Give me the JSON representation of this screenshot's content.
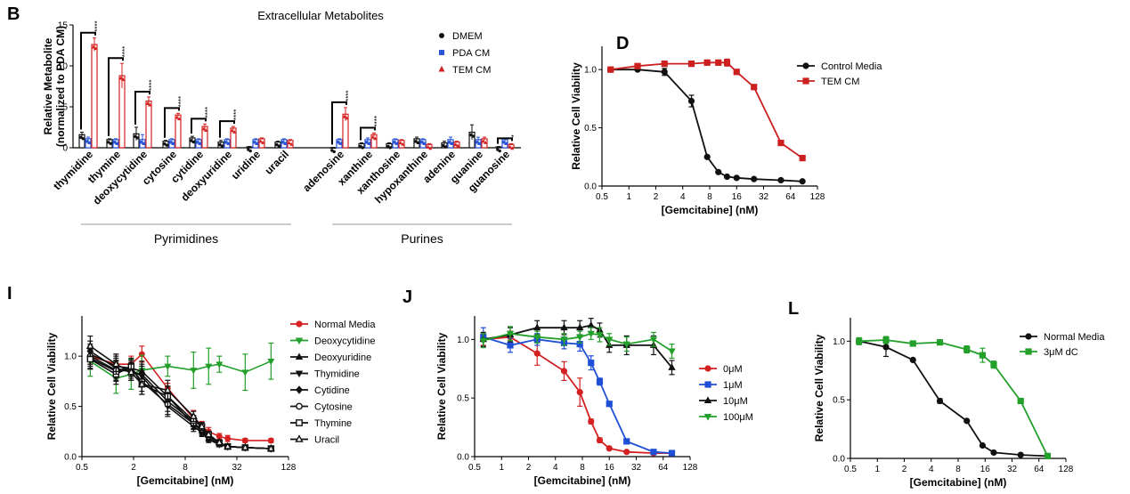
{
  "chart_data": [
    {
      "id": "B",
      "panel_label": "B",
      "type": "bar",
      "title": "Extracellular Metabolites",
      "ylabel": "Relative Metabolite\n(normalized to PDA CM)",
      "ylim": [
        0,
        15
      ],
      "yticks": [
        0,
        5,
        10,
        15
      ],
      "legend_position": "top-right",
      "categories": [
        "thymidine",
        "thymine",
        "deoxycytidine",
        "cytosine",
        "cytidine",
        "deoxyuridine",
        "uridine",
        "uracil",
        "adenosine",
        "xanthine",
        "xanthosine",
        "hypoxanthine",
        "adenine",
        "guanine",
        "guanosine"
      ],
      "groups": [
        {
          "name": "Pyrimidines",
          "first": 0,
          "last": 7
        },
        {
          "name": "Purines",
          "first": 8,
          "last": 14
        }
      ],
      "series": [
        {
          "name": "DMEM",
          "marker": "circle",
          "color": "#111111",
          "values": [
            1.6,
            1.0,
            1.7,
            0.8,
            1.2,
            0.7,
            0.1,
            0.7,
            0.0,
            0.5,
            0.5,
            1.1,
            0.6,
            1.9,
            0.1
          ]
        },
        {
          "name": "PDA CM",
          "marker": "square",
          "color": "#2b55d6",
          "values": [
            1.1,
            1.0,
            1.0,
            1.0,
            1.0,
            1.0,
            1.0,
            1.0,
            1.0,
            1.0,
            1.0,
            1.0,
            1.0,
            1.0,
            1.0
          ]
        },
        {
          "name": "TEM CM",
          "marker": "triangle",
          "color": "#d42020",
          "values": [
            12.6,
            8.8,
            5.7,
            4.0,
            2.6,
            2.4,
            1.1,
            0.9,
            4.1,
            1.6,
            0.9,
            0.4,
            0.7,
            1.1,
            0.4
          ]
        }
      ],
      "errors": [
        [
          0.3,
          0.1,
          0.8,
          0.1,
          0.2,
          0.2,
          0.05,
          0.1,
          0.05,
          0.1,
          0.1,
          0.2,
          0.2,
          0.9,
          0.05
        ],
        [
          0.2,
          0.1,
          0.6,
          0.1,
          0.1,
          0.1,
          0.1,
          0.1,
          0.1,
          0.2,
          0.1,
          0.1,
          0.3,
          0.3,
          0.2
        ],
        [
          0.8,
          1.5,
          0.5,
          0.2,
          0.3,
          0.2,
          0.1,
          0.1,
          0.8,
          0.2,
          0.1,
          0.1,
          0.1,
          0.2,
          0.1
        ]
      ],
      "annotations": [
        {
          "category": "thymidine",
          "text": "****"
        },
        {
          "category": "thymine",
          "text": "****"
        },
        {
          "category": "deoxycytidine",
          "text": "****"
        },
        {
          "category": "cytosine",
          "text": "****"
        },
        {
          "category": "cytidine",
          "text": "****"
        },
        {
          "category": "deoxyuridine",
          "text": "****"
        },
        {
          "category": "adenosine",
          "text": "****"
        },
        {
          "category": "xanthine",
          "text": "****"
        },
        {
          "category": "guanosine",
          "text": "*"
        }
      ]
    },
    {
      "id": "D",
      "panel_label": "D",
      "type": "line",
      "xlabel": "[Gemcitabine] (nM)",
      "ylabel": "Relative Cell Viability",
      "xscale": "log2",
      "xlim": [
        0.5,
        128
      ],
      "xticks": [
        0.5,
        1,
        2,
        4,
        8,
        16,
        32,
        64,
        128
      ],
      "xticklabels": [
        "0.5",
        "1",
        "2",
        "4",
        "8",
        "16",
        "32",
        "64",
        "128"
      ],
      "ylim": [
        0,
        1.2
      ],
      "yticks": [
        0,
        0.5,
        1.0
      ],
      "yticklabels": [
        "0.0",
        "0.5",
        "1.0"
      ],
      "legend_position": "top-right",
      "series": [
        {
          "name": "Control Media",
          "color": "#111111",
          "marker": "circle",
          "x": [
            0.625,
            1.25,
            2.5,
            5,
            7.5,
            10,
            12.5,
            16,
            25,
            50,
            87
          ],
          "y": [
            1.0,
            1.0,
            0.98,
            0.73,
            0.25,
            0.12,
            0.08,
            0.07,
            0.06,
            0.05,
            0.04
          ],
          "err": [
            0.01,
            0.01,
            0.03,
            0.05,
            0.01,
            0.01,
            0.01,
            0.01,
            0.01,
            0.01,
            0.01
          ]
        },
        {
          "name": "TEM CM",
          "color": "#cc1f1f",
          "marker": "square",
          "x": [
            0.625,
            1.25,
            2.5,
            5,
            7.5,
            10,
            12.5,
            16,
            25,
            50,
            87
          ],
          "y": [
            1.0,
            1.03,
            1.05,
            1.05,
            1.06,
            1.06,
            1.06,
            0.98,
            0.85,
            0.37,
            0.24
          ],
          "err": [
            0.01,
            0.01,
            0.01,
            0.01,
            0.01,
            0.02,
            0.03,
            0.02,
            0.02,
            0.01,
            0.01
          ]
        }
      ]
    },
    {
      "id": "I",
      "panel_label": "I",
      "type": "line",
      "xlabel": "[Gemcitabine]  (nM)",
      "ylabel": "Relative Cell Viability",
      "xscale": "log2",
      "xlim": [
        0.5,
        128
      ],
      "xticks": [
        0.5,
        2,
        8,
        32,
        128
      ],
      "xticklabels": [
        "0.5",
        "2",
        "8",
        "32",
        "128"
      ],
      "ylim": [
        0,
        1.4
      ],
      "yticks": [
        0,
        0.5,
        1.0
      ],
      "yticklabels": [
        "0.0",
        "0.5",
        "1.0"
      ],
      "legend_position": "top-right",
      "series": [
        {
          "name": "Normal Media",
          "color": "#d42020",
          "marker": "circle",
          "x": [
            0.625,
            1.25,
            1.875,
            2.5,
            5,
            10,
            12.5,
            15,
            20,
            25,
            40,
            80
          ],
          "y": [
            1.0,
            0.92,
            0.92,
            1.02,
            0.68,
            0.38,
            0.3,
            0.25,
            0.2,
            0.18,
            0.16,
            0.16
          ],
          "err": [
            0.08,
            0.1,
            0.08,
            0.08,
            0.05,
            0.08,
            0.05,
            0.04,
            0.03,
            0.03,
            0.02,
            0.02
          ]
        },
        {
          "name": "Deoxycytidine",
          "color": "#22a02a",
          "marker": "triangle-down",
          "x": [
            0.625,
            1.25,
            1.875,
            2.5,
            5,
            10,
            15,
            20,
            40,
            80
          ],
          "y": [
            0.95,
            0.78,
            0.82,
            0.86,
            0.9,
            0.86,
            0.9,
            0.92,
            0.84,
            0.95
          ],
          "err": [
            0.15,
            0.15,
            0.15,
            0.15,
            0.1,
            0.18,
            0.18,
            0.08,
            0.18,
            0.18
          ]
        },
        {
          "name": "Deoxyuridine",
          "color": "#111111",
          "marker": "triangle",
          "x": [
            0.625,
            1.25,
            1.875,
            2.5,
            5,
            10,
            12.5,
            15,
            20,
            25,
            40,
            80
          ],
          "y": [
            1.02,
            0.9,
            0.88,
            0.85,
            0.6,
            0.32,
            0.26,
            0.18,
            0.12,
            0.1,
            0.09,
            0.08
          ],
          "err": [
            0.1,
            0.1,
            0.08,
            0.1,
            0.1,
            0.05,
            0.04,
            0.03,
            0.02,
            0.02,
            0.02,
            0.02
          ]
        },
        {
          "name": "Thymidine",
          "color": "#111111",
          "marker": "triangle-down",
          "x": [
            0.625,
            1.25,
            1.875,
            2.5,
            5,
            10,
            12.5,
            15,
            20,
            25,
            40,
            80
          ],
          "y": [
            0.98,
            0.85,
            0.86,
            0.8,
            0.5,
            0.3,
            0.24,
            0.17,
            0.12,
            0.1,
            0.09,
            0.08
          ],
          "err": [
            0.1,
            0.1,
            0.08,
            0.1,
            0.1,
            0.05,
            0.04,
            0.03,
            0.02,
            0.02,
            0.02,
            0.02
          ]
        },
        {
          "name": "Cytidine",
          "color": "#111111",
          "marker": "diamond",
          "x": [
            0.625,
            1.25,
            1.875,
            2.5,
            5,
            10,
            12.5,
            15,
            20,
            25,
            40,
            80
          ],
          "y": [
            1.05,
            0.88,
            0.84,
            0.82,
            0.55,
            0.35,
            0.25,
            0.2,
            0.14,
            0.1,
            0.09,
            0.08
          ],
          "err": [
            0.1,
            0.1,
            0.08,
            0.1,
            0.1,
            0.05,
            0.04,
            0.03,
            0.02,
            0.02,
            0.02,
            0.02
          ]
        },
        {
          "name": "Cytosine",
          "color": "#111111",
          "marker": "circle-open",
          "x": [
            0.625,
            1.25,
            1.875,
            2.5,
            5,
            10,
            12.5,
            15,
            20,
            25,
            40,
            80
          ],
          "y": [
            1.0,
            0.86,
            0.88,
            0.75,
            0.52,
            0.33,
            0.27,
            0.2,
            0.13,
            0.1,
            0.09,
            0.08
          ],
          "err": [
            0.1,
            0.1,
            0.08,
            0.1,
            0.1,
            0.05,
            0.04,
            0.03,
            0.02,
            0.02,
            0.02,
            0.02
          ]
        },
        {
          "name": "Thymine",
          "color": "#111111",
          "marker": "square-open",
          "x": [
            0.625,
            1.25,
            1.875,
            2.5,
            5,
            10,
            12.5,
            15,
            20,
            25,
            40,
            80
          ],
          "y": [
            0.97,
            0.82,
            0.9,
            0.72,
            0.6,
            0.36,
            0.3,
            0.22,
            0.14,
            0.1,
            0.09,
            0.08
          ],
          "err": [
            0.1,
            0.1,
            0.08,
            0.1,
            0.1,
            0.05,
            0.04,
            0.03,
            0.02,
            0.02,
            0.02,
            0.02
          ]
        },
        {
          "name": "Uracil",
          "color": "#111111",
          "marker": "triangle-open",
          "x": [
            0.625,
            1.25,
            1.875,
            2.5,
            5,
            10,
            12.5,
            15,
            20,
            25,
            40,
            80
          ],
          "y": [
            1.1,
            0.92,
            0.84,
            0.72,
            0.66,
            0.4,
            0.3,
            0.22,
            0.14,
            0.1,
            0.09,
            0.08
          ],
          "err": [
            0.1,
            0.1,
            0.08,
            0.1,
            0.1,
            0.05,
            0.04,
            0.03,
            0.02,
            0.02,
            0.02,
            0.02
          ]
        }
      ]
    },
    {
      "id": "J",
      "panel_label": "J",
      "type": "line",
      "xlabel": "[Gemcitabine] (nM)",
      "ylabel": "Relative Cell Viability",
      "xscale": "log2",
      "xlim": [
        0.5,
        128
      ],
      "xticks": [
        0.5,
        1,
        2,
        4,
        8,
        16,
        32,
        64,
        128
      ],
      "xticklabels": [
        "0.5",
        "1",
        "2",
        "4",
        "8",
        "16",
        "32",
        "64",
        "128"
      ],
      "ylim": [
        0,
        1.2
      ],
      "yticks": [
        0,
        0.5,
        1.0
      ],
      "yticklabels": [
        "0.0",
        "0.5",
        "1.0"
      ],
      "legend_position": "right",
      "series": [
        {
          "name": "0μM",
          "color": "#d42020",
          "marker": "circle",
          "x": [
            0.625,
            1.25,
            2.5,
            5,
            7.5,
            10,
            12.5,
            16,
            25,
            50,
            80
          ],
          "y": [
            1.0,
            1.02,
            0.88,
            0.73,
            0.55,
            0.3,
            0.14,
            0.07,
            0.04,
            0.03,
            0.03
          ],
          "err": [
            0.05,
            0.05,
            0.1,
            0.08,
            0.12,
            0.02,
            0.02,
            0.01,
            0.01,
            0.01,
            0.01
          ]
        },
        {
          "name": "1μM",
          "color": "#1f4fd6",
          "marker": "square",
          "x": [
            0.625,
            1.25,
            2.5,
            5,
            7.5,
            10,
            12.5,
            16,
            25,
            50,
            80
          ],
          "y": [
            1.02,
            0.95,
            1.0,
            0.97,
            0.96,
            0.8,
            0.64,
            0.45,
            0.13,
            0.04,
            0.03
          ],
          "err": [
            0.08,
            0.06,
            0.05,
            0.05,
            0.06,
            0.06,
            0.03,
            0.02,
            0.01,
            0.01,
            0.01
          ]
        },
        {
          "name": "10μM",
          "color": "#111111",
          "marker": "triangle",
          "x": [
            0.625,
            1.25,
            2.5,
            5,
            7.5,
            10,
            12.5,
            16,
            25,
            50,
            80
          ],
          "y": [
            1.0,
            1.04,
            1.1,
            1.1,
            1.1,
            1.12,
            1.08,
            0.95,
            0.95,
            0.95,
            0.76
          ],
          "err": [
            0.06,
            0.06,
            0.06,
            0.06,
            0.06,
            0.06,
            0.06,
            0.06,
            0.08,
            0.08,
            0.06
          ]
        },
        {
          "name": "100μM",
          "color": "#22a02a",
          "marker": "triangle-down",
          "x": [
            0.625,
            1.25,
            2.5,
            5,
            7.5,
            10,
            12.5,
            16,
            25,
            50,
            80
          ],
          "y": [
            0.99,
            1.05,
            1.02,
            1.0,
            1.02,
            1.05,
            1.04,
            1.0,
            0.96,
            1.0,
            0.9
          ],
          "err": [
            0.06,
            0.06,
            0.05,
            0.05,
            0.05,
            0.05,
            0.06,
            0.05,
            0.06,
            0.06,
            0.06
          ]
        }
      ]
    },
    {
      "id": "L",
      "panel_label": "L",
      "type": "line",
      "xlabel": "[Gemcitabine] (nM)",
      "ylabel": "Relative Cell Viability",
      "xscale": "log2",
      "xlim": [
        0.5,
        128
      ],
      "xticks": [
        0.5,
        1,
        2,
        4,
        8,
        16,
        32,
        64,
        128
      ],
      "xticklabels": [
        "0.5",
        "1",
        "2",
        "4",
        "8",
        "16",
        "32",
        "64",
        "128"
      ],
      "ylim": [
        0,
        1.2
      ],
      "yticks": [
        0,
        0.5,
        1.0
      ],
      "yticklabels": [
        "0.0",
        "0.5",
        "1.0"
      ],
      "legend_position": "top-right",
      "series": [
        {
          "name": "Normal Media",
          "color": "#111111",
          "marker": "circle",
          "x": [
            0.625,
            1.25,
            2.5,
            5,
            10,
            15,
            20,
            40,
            80
          ],
          "y": [
            1.0,
            0.95,
            0.84,
            0.49,
            0.32,
            0.11,
            0.05,
            0.03,
            0.02
          ],
          "err": [
            0.02,
            0.08,
            0.01,
            0.02,
            0.01,
            0.01,
            0.01,
            0.01,
            0.01
          ]
        },
        {
          "name": "3μM dC",
          "color": "#22a02a",
          "marker": "square",
          "x": [
            0.625,
            1.25,
            2.5,
            5,
            10,
            15,
            20,
            40,
            80
          ],
          "y": [
            1.0,
            1.01,
            0.98,
            0.99,
            0.93,
            0.88,
            0.8,
            0.49,
            0.02
          ],
          "err": [
            0.03,
            0.03,
            0.02,
            0.01,
            0.03,
            0.06,
            0.03,
            0.01,
            0.01
          ]
        }
      ]
    }
  ]
}
